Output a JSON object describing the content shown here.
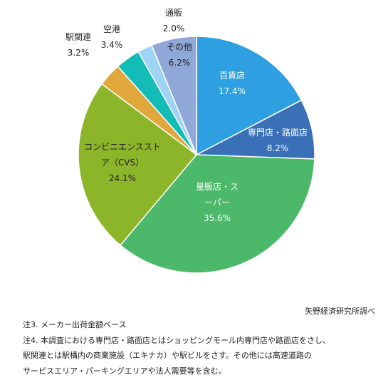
{
  "chart_data": {
    "type": "pie",
    "categories": [
      "百貨店",
      "専門店・路面店",
      "量販店・スーパー",
      "コンビニエンスストア（CVS）",
      "駅関連",
      "空港",
      "通販",
      "その他"
    ],
    "values": [
      17.4,
      8.2,
      35.6,
      24.1,
      3.2,
      3.4,
      2.0,
      6.2
    ],
    "value_labels": [
      "17.4%",
      "8.2%",
      "35.6%",
      "24.1%",
      "3.2%",
      "3.4%",
      "2.0%",
      "6.2%"
    ],
    "colors": [
      "#2e9fe0",
      "#3a70b8",
      "#4cb86a",
      "#8db52a",
      "#e0a83a",
      "#14bcb8",
      "#9fd3f5",
      "#8fa8d8"
    ],
    "source": "矢野経済研究所調べ",
    "notes": [
      "注3. メーカー出荷金額ベース",
      "注4. 本調査における専門店・路面店とはショッピングモール内専門店や路面店をさし、",
      "駅関連とは駅構内の商業施設（エキナカ）や駅ビルをさす。その他には高速道路の",
      "サービスエリア・パーキングエリアや法人需要等を含む。"
    ]
  }
}
